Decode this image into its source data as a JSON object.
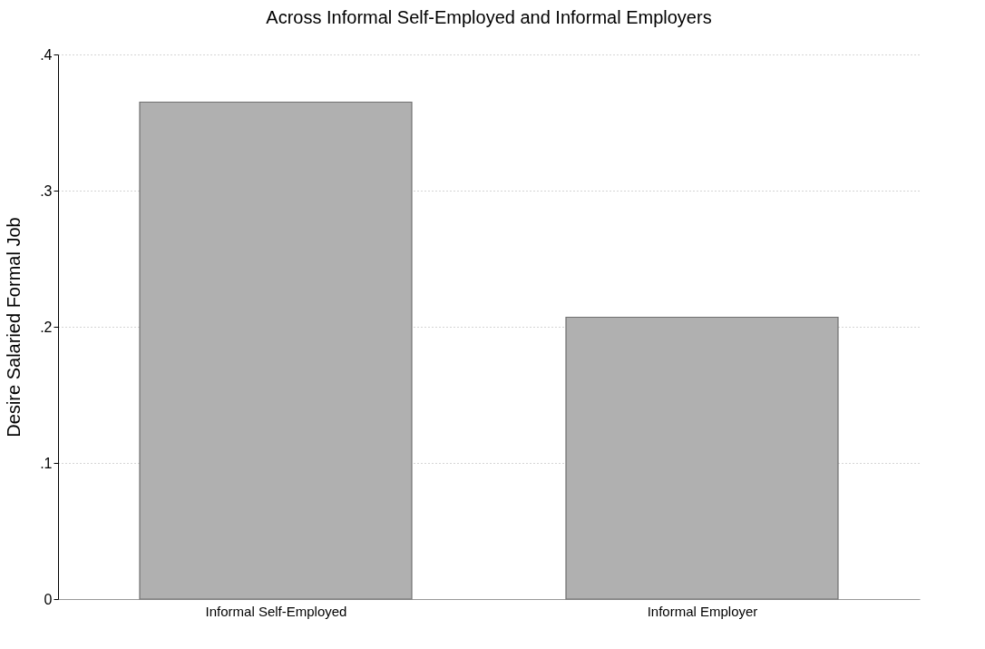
{
  "chart_data": {
    "type": "bar",
    "title": "Across Informal Self-Employed and Informal Employers",
    "ylabel": "Desire Salaried Formal Job",
    "categories": [
      "Informal Self-Employed",
      "Informal Employer"
    ],
    "values": [
      0.365,
      0.207
    ],
    "color": "#b0b0b0",
    "ylim": [
      0,
      0.4
    ],
    "yticks": [
      0,
      {
        "value": 0.1,
        "label": ".1"
      },
      {
        "value": 0.2,
        "label": ".2"
      },
      {
        "value": 0.3,
        "label": ".3"
      },
      {
        "value": 0.4,
        "label": ".4"
      }
    ],
    "grid": "y"
  }
}
